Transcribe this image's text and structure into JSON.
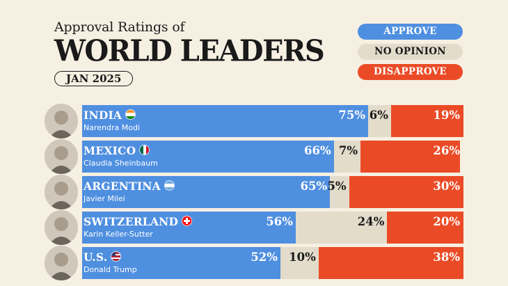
{
  "header": {
    "subtitle": "Approval Ratings of",
    "title": "WORLD LEADERS",
    "date": "JAN 2025"
  },
  "legend": [
    {
      "label": "APPROVE",
      "color": "#4f8fe0",
      "text_color": "#ffffff"
    },
    {
      "label": "NO OPINION",
      "color": "#e3dccb",
      "text_color": "#1a1a1a"
    },
    {
      "label": "DISAPPROVE",
      "color": "#ea4b26",
      "text_color": "#ffffff"
    }
  ],
  "chart_data": {
    "type": "bar",
    "stacked": true,
    "orientation": "horizontal",
    "categories": [
      "INDIA",
      "MEXICO",
      "ARGENTINA",
      "SWITZERLAND",
      "U.S."
    ],
    "leaders": [
      "Narendra Modi",
      "Claudia Sheinbaum",
      "Javier Milei",
      "Karin Keller-Sutter",
      "Donald Trump"
    ],
    "flag_icons": [
      "india-flag-icon",
      "mexico-flag-icon",
      "argentina-flag-icon",
      "switzerland-flag-icon",
      "usa-flag-icon"
    ],
    "series": [
      {
        "name": "APPROVE",
        "values": [
          75,
          66,
          65,
          56,
          52
        ],
        "labels": [
          "75%",
          "66%",
          "65%",
          "56%",
          "52%"
        ],
        "color": "#4f8fe0"
      },
      {
        "name": "NO OPINION",
        "values": [
          6,
          7,
          5,
          24,
          10
        ],
        "labels": [
          "6%",
          "7%",
          "5%",
          "24%",
          "10%"
        ],
        "color": "#e3dccb"
      },
      {
        "name": "DISAPPROVE",
        "values": [
          19,
          26,
          30,
          20,
          38
        ],
        "labels": [
          "19%",
          "26%",
          "30%",
          "20%",
          "38%"
        ],
        "color": "#ea4b26"
      }
    ],
    "xlim": [
      0,
      100
    ],
    "legend_position": "top-right"
  }
}
